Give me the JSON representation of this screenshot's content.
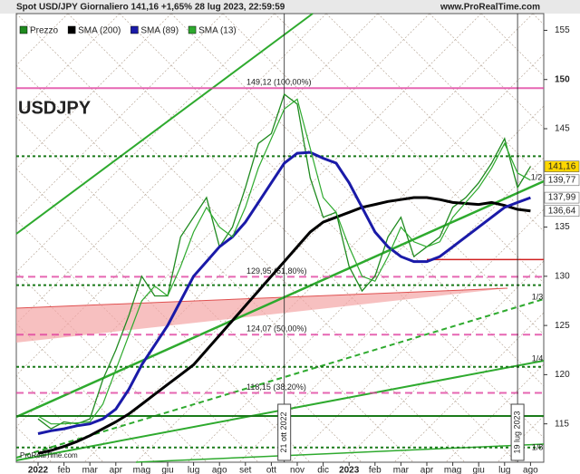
{
  "chart_data": {
    "type": "line",
    "title": "Spot USD/JPY Giornaliero 141,16 +1,65% 28 lug 2023, 22:59:59",
    "source": "www.ProRealTime.com",
    "watermark": "ProRealTime.com",
    "symbol": "USDJPY",
    "categories": [
      "2022",
      null,
      "feb",
      null,
      "mar",
      null,
      "apr",
      null,
      "mag",
      null,
      "giu",
      null,
      "lug",
      null,
      "ago",
      null,
      "set",
      null,
      "ott",
      null,
      "nov",
      null,
      "dic",
      null,
      "2023",
      null,
      "feb",
      null,
      "mar",
      null,
      "apr",
      null,
      "mag",
      null,
      "giu",
      null,
      "lug",
      null,
      "ago"
    ],
    "series": [
      {
        "name": "Prezzo",
        "color": "#1f8a1f",
        "values": [
          115.5,
          114.5,
          115.2,
          115.0,
          115.5,
          119.5,
          122.5,
          126,
          130,
          128,
          128,
          134,
          136,
          138,
          133,
          135,
          139,
          143.5,
          144.5,
          148.5,
          147.5,
          140,
          136,
          136.5,
          131,
          128.5,
          130,
          134,
          136,
          132,
          133,
          134,
          137,
          138,
          139.5,
          141.5,
          144,
          139,
          141.16
        ]
      },
      {
        "name": "SMA (200)",
        "color": "#000000",
        "values": [
          112,
          112.3,
          112.7,
          113.2,
          113.8,
          114.5,
          115.2,
          116,
          117,
          118,
          119,
          120,
          121,
          122.5,
          124,
          125.5,
          127,
          128.5,
          130,
          131.5,
          133,
          134.5,
          135.5,
          136,
          136.5,
          137,
          137.3,
          137.6,
          137.8,
          138,
          138,
          137.8,
          137.5,
          137.4,
          137.3,
          137.5,
          137.2,
          136.8,
          136.64
        ]
      },
      {
        "name": "SMA (89)",
        "color": "#1a1aa8",
        "values": [
          114,
          114.3,
          114.5,
          114.8,
          115,
          115.5,
          116.5,
          118.5,
          121,
          123,
          125,
          127.5,
          130,
          131.5,
          133,
          134,
          135.5,
          137.5,
          139.5,
          141.5,
          142.5,
          142.6,
          142,
          141.5,
          139.5,
          137,
          134.5,
          133,
          132,
          131.5,
          131.5,
          132,
          133,
          134,
          135,
          136,
          137,
          137.5,
          137.99
        ]
      },
      {
        "name": "SMA (13)",
        "color": "#2eaa2e",
        "values": [
          115.8,
          115,
          115,
          115.1,
          115.2,
          117,
          120.5,
          124,
          127.5,
          129,
          128,
          131,
          134.5,
          137,
          135,
          134,
          137,
          141,
          144,
          147,
          148,
          143,
          138,
          136.5,
          133,
          130,
          129.5,
          132,
          135,
          133.5,
          133,
          133.5,
          136,
          137.5,
          139,
          141,
          143.5,
          140.5,
          139.77
        ]
      }
    ],
    "ylim": [
      111.1,
      156.7
    ],
    "yticks": [
      115,
      120,
      125,
      130,
      135,
      140,
      145,
      150,
      155
    ],
    "price_labels": [
      {
        "value": 141.16,
        "label": "141,16",
        "color": "#ffd700"
      },
      {
        "value": 139.77,
        "label": "139,77",
        "color": "#ffffff"
      },
      {
        "value": 137.99,
        "label": "137,99",
        "color": "#ffffff"
      },
      {
        "value": 136.64,
        "label": "136,64",
        "color": "#ffffff"
      }
    ],
    "fibonacci": [
      {
        "value": 149.12,
        "label": "149,12 (100,00%)"
      },
      {
        "value": 129.95,
        "label": "129,95 (61,80%)"
      },
      {
        "value": 124.07,
        "label": "124,07 (50,00%)"
      },
      {
        "value": 118.15,
        "label": "118,15 (38,20%)"
      }
    ],
    "fib_color": "#e040a0",
    "dotted_levels": [
      142.2,
      129.1,
      120.8,
      112.6
    ],
    "dotted_color": "#1a7a1a",
    "solid_level": 115.8,
    "red_level": 131.7,
    "events": [
      {
        "index": 19,
        "label": "21 ott 2022"
      },
      {
        "index": 37,
        "label": "19 lug 2023"
      }
    ],
    "fan_labels": [
      "1/2",
      "1/3",
      "1/4",
      "1/8"
    ]
  }
}
